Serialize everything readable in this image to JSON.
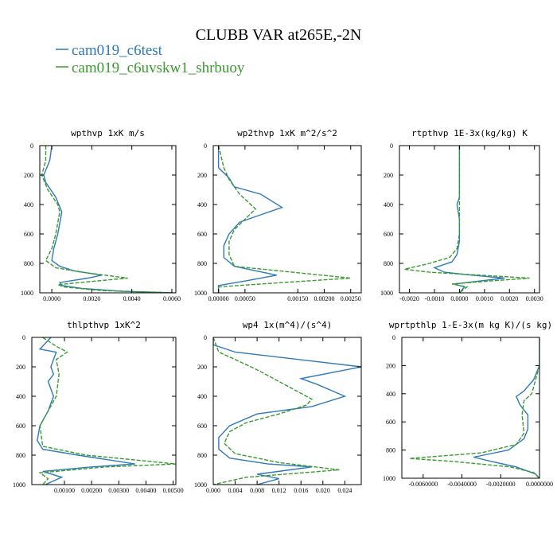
{
  "title": "CLUBB VAR at265E,-2N",
  "legend": [
    {
      "label": "cam019_c6test",
      "color": "#2e7ab8",
      "dash": "solid"
    },
    {
      "label": "cam019_c6uvskw1_shrbuoy",
      "color": "#3a9a2e",
      "dash": "dashed"
    }
  ],
  "chart_data": [
    {
      "type": "line",
      "title": "wpthvp  1xK m/s",
      "xlim": [
        -0.0006,
        0.0062
      ],
      "ylim": [
        1000,
        0
      ],
      "xticks": [
        0.0,
        0.002,
        0.004,
        0.006
      ],
      "xtick_labels": [
        "0.0000",
        "0.0020",
        "0.0040",
        "0.0060"
      ],
      "yticks": [
        0,
        200,
        400,
        600,
        800,
        1000
      ],
      "ytick_labels": [
        "0",
        "200",
        "400",
        "600",
        "800",
        "1000"
      ],
      "series": [
        {
          "name": "cam019_c6test",
          "x": [
            0.0,
            -0.0001,
            -0.0004,
            -0.0003,
            0.0002,
            0.0005,
            0.0003,
            0.0001,
            0.0,
            0.0004,
            0.0011,
            0.0025,
            0.0018,
            0.0004,
            0.0005,
            0.0015,
            0.0035,
            0.006
          ],
          "y": [
            0,
            100,
            200,
            250,
            350,
            450,
            600,
            700,
            780,
            820,
            850,
            880,
            900,
            930,
            950,
            970,
            990,
            1000
          ]
        },
        {
          "name": "cam019_c6uvskw1_shrbuoy",
          "x": [
            -0.0003,
            -0.0003,
            -0.0005,
            -0.0002,
            0.0003,
            0.0004,
            0.0002,
            0.0,
            -0.0003,
            0.0002,
            0.0015,
            0.0038,
            0.0022,
            0.0003,
            0.0006,
            0.0025,
            0.0062
          ],
          "y": [
            0,
            100,
            200,
            300,
            400,
            450,
            600,
            700,
            780,
            830,
            860,
            900,
            920,
            945,
            960,
            985,
            1000
          ]
        }
      ]
    },
    {
      "type": "line",
      "title": "wp2thvp  1xK m^2/s^2",
      "xlim": [
        -0.0001,
        0.0027
      ],
      "ylim": [
        1000,
        0
      ],
      "xticks": [
        0.0,
        0.0005,
        0.0015,
        0.002,
        0.0025
      ],
      "xtick_labels": [
        "0.00000",
        "0.00050",
        "0.00150",
        "0.00200",
        "0.00250"
      ],
      "yticks": [
        0,
        200,
        400,
        600,
        800,
        1000
      ],
      "ytick_labels": [
        "0",
        "200",
        "400",
        "600",
        "800",
        "1000"
      ],
      "series": [
        {
          "name": "cam019_c6test",
          "x": [
            0.0,
            0.0,
            0.0002,
            0.0003,
            0.0008,
            0.0012,
            0.0008,
            0.0004,
            0.0002,
            0.0001,
            0.0001,
            0.0003,
            0.0011,
            0.0005,
            0.0,
            0.0
          ],
          "y": [
            0,
            150,
            220,
            280,
            330,
            420,
            470,
            520,
            600,
            680,
            760,
            820,
            880,
            920,
            950,
            1000
          ]
        },
        {
          "name": "cam019_c6uvskw1_shrbuoy",
          "x": [
            0.0,
            0.0001,
            0.0002,
            0.0004,
            0.0007,
            0.0005,
            0.0003,
            0.0002,
            0.0002,
            0.0003,
            0.0014,
            0.0025,
            0.0008,
            0.0,
            0.0
          ],
          "y": [
            0,
            150,
            230,
            330,
            430,
            500,
            570,
            650,
            740,
            820,
            860,
            900,
            940,
            960,
            1000
          ]
        }
      ]
    },
    {
      "type": "line",
      "title": "rtpthvp  1E-3x(kg/kg) K",
      "xlim": [
        -0.0024,
        0.0032
      ],
      "ylim": [
        1000,
        0
      ],
      "xticks": [
        -0.002,
        -0.001,
        0.0,
        0.001,
        0.002,
        0.003
      ],
      "xtick_labels": [
        "-0.0020",
        "-0.0010",
        "0.0000",
        "0.0010",
        "0.0020",
        "0.0030"
      ],
      "yticks": [
        0,
        200,
        400,
        600,
        800,
        1000
      ],
      "ytick_labels": [
        "0",
        "200",
        "400",
        "600",
        "800",
        "1000"
      ],
      "series": [
        {
          "name": "cam019_c6test",
          "x": [
            0.0,
            0.0,
            0.0,
            -0.0001,
            0.0,
            0.0,
            -0.0001,
            -0.0003,
            -0.001,
            -0.0006,
            0.0005,
            0.0018,
            0.0008,
            -0.0002,
            0.0002,
            0.0
          ],
          "y": [
            0,
            200,
            350,
            400,
            500,
            650,
            740,
            790,
            830,
            860,
            880,
            900,
            920,
            940,
            960,
            1000
          ]
        },
        {
          "name": "cam019_c6uvskw1_shrbuoy",
          "x": [
            0.0,
            0.0,
            0.0,
            0.0,
            0.0,
            -0.0001,
            -0.0004,
            -0.0012,
            -0.0022,
            -0.0012,
            0.0008,
            0.0028,
            0.0012,
            -0.0003,
            0.0003,
            0.0
          ],
          "y": [
            0,
            200,
            350,
            450,
            600,
            700,
            760,
            800,
            840,
            860,
            880,
            900,
            920,
            940,
            960,
            1000
          ]
        }
      ]
    },
    {
      "type": "line",
      "title": "thlpthvp  1xK^2",
      "xlim": [
        -0.0002,
        0.0051
      ],
      "ylim": [
        1000,
        0
      ],
      "xticks": [
        0.001,
        0.002,
        0.003,
        0.004,
        0.005
      ],
      "xtick_labels": [
        "0.00100",
        "0.00200",
        "0.00300",
        "0.00400",
        "0.00500"
      ],
      "yticks": [
        0,
        200,
        400,
        600,
        800,
        1000
      ],
      "ytick_labels": [
        "0",
        "200",
        "400",
        "600",
        "800",
        "1000"
      ],
      "series": [
        {
          "name": "cam019_c6test",
          "x": [
            0.0005,
            0.0001,
            0.0007,
            0.0005,
            0.0006,
            0.0004,
            0.0006,
            0.0004,
            0.0001,
            0.0,
            0.0002,
            0.0015,
            0.0036,
            0.002,
            0.0002,
            0.0009,
            0.0003
          ],
          "y": [
            0,
            80,
            100,
            200,
            250,
            300,
            400,
            500,
            600,
            700,
            760,
            800,
            860,
            880,
            910,
            950,
            1000
          ]
        },
        {
          "name": "cam019_c6uvskw1_shrbuoy",
          "x": [
            0.0002,
            0.0007,
            0.0011,
            0.0007,
            0.0008,
            0.0007,
            0.0004,
            0.0001,
            0.0002,
            0.0018,
            0.0051,
            0.0025,
            0.0001,
            0.0004,
            0.0002
          ],
          "y": [
            0,
            60,
            100,
            150,
            250,
            400,
            500,
            600,
            740,
            800,
            860,
            880,
            920,
            960,
            1000
          ]
        }
      ]
    },
    {
      "type": "line",
      "title": "wp4  1x(m^4)/(s^4)",
      "xlim": [
        0.0,
        0.027
      ],
      "ylim": [
        1000,
        0
      ],
      "xticks": [
        0.0,
        0.004,
        0.008,
        0.012,
        0.016,
        0.02,
        0.024
      ],
      "xtick_labels": [
        "0.000",
        "0.004",
        "0.008",
        "0.012",
        "0.016",
        "0.020",
        "0.024"
      ],
      "yticks": [
        0,
        200,
        400,
        600,
        800,
        1000
      ],
      "ytick_labels": [
        "0",
        "200",
        "400",
        "600",
        "800",
        "1000"
      ],
      "series": [
        {
          "name": "cam019_c6test",
          "x": [
            0.0,
            0.0,
            0.004,
            0.027,
            0.016,
            0.019,
            0.024,
            0.018,
            0.008,
            0.003,
            0.001,
            0.001,
            0.003,
            0.01,
            0.018,
            0.008,
            0.012,
            0.008
          ],
          "y": [
            0,
            50,
            100,
            200,
            280,
            320,
            400,
            470,
            520,
            600,
            680,
            760,
            820,
            860,
            880,
            930,
            960,
            1000
          ]
        },
        {
          "name": "cam019_c6uvskw1_shrbuoy",
          "x": [
            0.0,
            0.001,
            0.004,
            0.008,
            0.012,
            0.018,
            0.017,
            0.012,
            0.006,
            0.003,
            0.002,
            0.004,
            0.012,
            0.023,
            0.006,
            0.0
          ],
          "y": [
            0,
            100,
            150,
            220,
            300,
            420,
            460,
            520,
            580,
            640,
            720,
            790,
            850,
            900,
            950,
            1000
          ]
        }
      ]
    },
    {
      "type": "line",
      "title": "wprtpthlp  1-E-3x(m kg K)/(s kg)",
      "xlim": [
        -0.0071,
        0.0
      ],
      "ylim": [
        1000,
        0
      ],
      "xticks": [
        -0.006,
        -0.004,
        -0.002,
        0.0
      ],
      "xtick_labels": [
        "-0.0060000",
        "-0.0040000",
        "-0.0020000",
        "0.0000000"
      ],
      "yticks": [
        0,
        200,
        400,
        600,
        800,
        1000
      ],
      "ytick_labels": [
        "0",
        "200",
        "400",
        "600",
        "800",
        "1000"
      ],
      "series": [
        {
          "name": "cam019_c6test",
          "x": [
            0.0,
            0.0,
            -0.0003,
            -0.0008,
            -0.0012,
            -0.001,
            -0.0006,
            -0.0006,
            -0.0008,
            -0.0016,
            -0.0034,
            -0.0025,
            -0.0012,
            -0.0002,
            0.0
          ],
          "y": [
            0,
            200,
            300,
            380,
            420,
            480,
            550,
            650,
            720,
            800,
            850,
            880,
            920,
            970,
            1000
          ]
        },
        {
          "name": "cam019_c6uvskw1_shrbuoy",
          "x": [
            0.0,
            0.0,
            -0.0002,
            -0.0004,
            -0.0008,
            -0.0009,
            -0.0008,
            -0.0012,
            -0.003,
            -0.0067,
            -0.0045,
            -0.0015,
            -0.0003,
            0.0
          ],
          "y": [
            0,
            200,
            300,
            400,
            450,
            550,
            680,
            760,
            820,
            860,
            880,
            920,
            960,
            1000
          ]
        }
      ]
    }
  ]
}
